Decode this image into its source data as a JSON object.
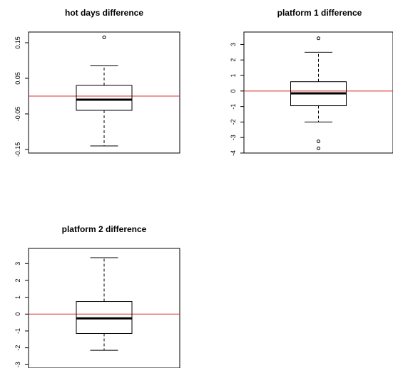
{
  "chart_data": [
    {
      "type": "box",
      "title": "hot days difference",
      "yticks": [
        0.15,
        0.05,
        -0.05,
        -0.15
      ],
      "ytick_labels": [
        "0.15",
        "0.05",
        "-0.05",
        "-0.15"
      ],
      "ylim": [
        -0.16,
        0.18
      ],
      "whisker_low": -0.14,
      "q1": -0.04,
      "median": -0.01,
      "q3": 0.03,
      "whisker_high": 0.085,
      "outliers": [
        0.165
      ],
      "reference_line": 0,
      "reference_color": "#d9302c"
    },
    {
      "type": "box",
      "title": "platform 1 difference",
      "yticks": [
        3,
        2,
        1,
        0,
        -1,
        -2,
        -3,
        -4
      ],
      "ytick_labels": [
        "3",
        "2",
        "1",
        "0",
        "-1",
        "-2",
        "-3",
        "-4"
      ],
      "ylim": [
        -4,
        3.8
      ],
      "whisker_low": -2.0,
      "q1": -0.95,
      "median": -0.15,
      "q3": 0.6,
      "whisker_high": 2.5,
      "outliers": [
        3.4,
        -3.25,
        -3.7
      ],
      "reference_line": 0,
      "reference_color": "#d9302c"
    },
    {
      "type": "box",
      "title": "platform 2 difference",
      "yticks": [
        3,
        2,
        1,
        0,
        -1,
        -2,
        -3
      ],
      "ytick_labels": [
        "3",
        "2",
        "1",
        "0",
        "-1",
        "-2",
        "-3"
      ],
      "ylim": [
        -3.2,
        3.9
      ],
      "whisker_low": -2.15,
      "q1": -1.15,
      "median": -0.25,
      "q3": 0.75,
      "whisker_high": 3.35,
      "outliers": [],
      "reference_line": 0,
      "reference_color": "#d9302c"
    }
  ]
}
